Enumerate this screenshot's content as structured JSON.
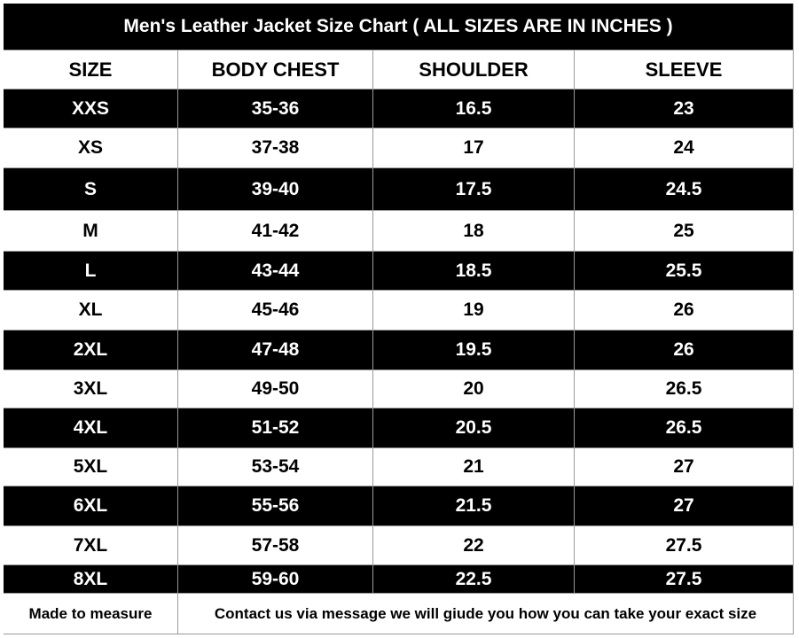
{
  "title": "Men's Leather Jacket Size Chart ( ALL SIZES ARE IN INCHES )",
  "table": {
    "header": [
      "SIZE",
      "BODY CHEST",
      "SHOULDER",
      "SLEEVE"
    ],
    "rows": [
      [
        "XXS",
        "35-36",
        "16.5",
        "23"
      ],
      [
        "XS",
        "37-38",
        "17",
        "24"
      ],
      [
        "S",
        "39-40",
        "17.5",
        "24.5"
      ],
      [
        "M",
        "41-42",
        "18",
        "25"
      ],
      [
        "L",
        "43-44",
        "18.5",
        "25.5"
      ],
      [
        "XL",
        "45-46",
        "19",
        "26"
      ],
      [
        "2XL",
        "47-48",
        "19.5",
        "26"
      ],
      [
        "3XL",
        "49-50",
        "20",
        "26.5"
      ],
      [
        "4XL",
        "51-52",
        "20.5",
        "26.5"
      ],
      [
        "5XL",
        "53-54",
        "21",
        "27"
      ],
      [
        "6XL",
        "55-56",
        "21.5",
        "27"
      ],
      [
        "7XL",
        "57-58",
        "22",
        "27.5"
      ],
      [
        "8XL",
        "59-60",
        "22.5",
        "27.5"
      ]
    ],
    "footer": [
      "Made to measure",
      "Contact us via message we will giude you how you can take your exact size"
    ]
  }
}
